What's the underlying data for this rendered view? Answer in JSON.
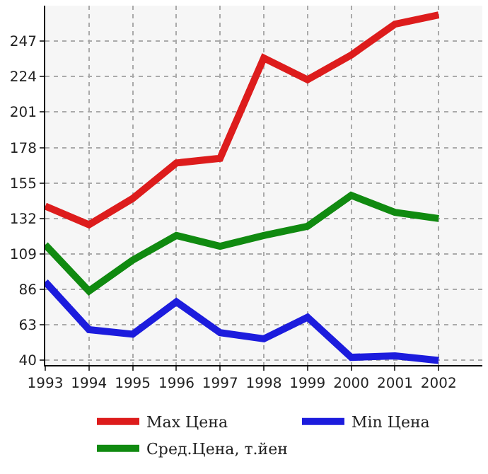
{
  "chart_data": {
    "type": "line",
    "x": [
      1993,
      1994,
      1995,
      1996,
      1997,
      1998,
      1999,
      2000,
      2001,
      2002
    ],
    "series": [
      {
        "name": "Max Цена",
        "color": "#dd1c1c",
        "values": [
          140,
          128,
          145,
          168,
          171,
          236,
          222,
          238,
          258,
          264
        ]
      },
      {
        "name": "Min Цена",
        "color": "#1c1cdd",
        "values": [
          91,
          60,
          57,
          78,
          58,
          54,
          68,
          42,
          43,
          40
        ]
      },
      {
        "name": "Сред.Цена, т.йен",
        "color": "#108a10",
        "values": [
          115,
          85,
          105,
          121,
          114,
          121,
          127,
          147,
          136,
          132
        ]
      }
    ],
    "xlim": [
      1993,
      2003
    ],
    "xticks": [
      1993,
      1994,
      1995,
      1996,
      1997,
      1998,
      1999,
      2000,
      2001,
      2002
    ],
    "ylim": [
      37,
      270
    ],
    "yticks": [
      40,
      63,
      86,
      109,
      132,
      155,
      178,
      201,
      224,
      247
    ],
    "grid": true,
    "legend": "bottom",
    "marker": "none",
    "line_style": "solid"
  }
}
